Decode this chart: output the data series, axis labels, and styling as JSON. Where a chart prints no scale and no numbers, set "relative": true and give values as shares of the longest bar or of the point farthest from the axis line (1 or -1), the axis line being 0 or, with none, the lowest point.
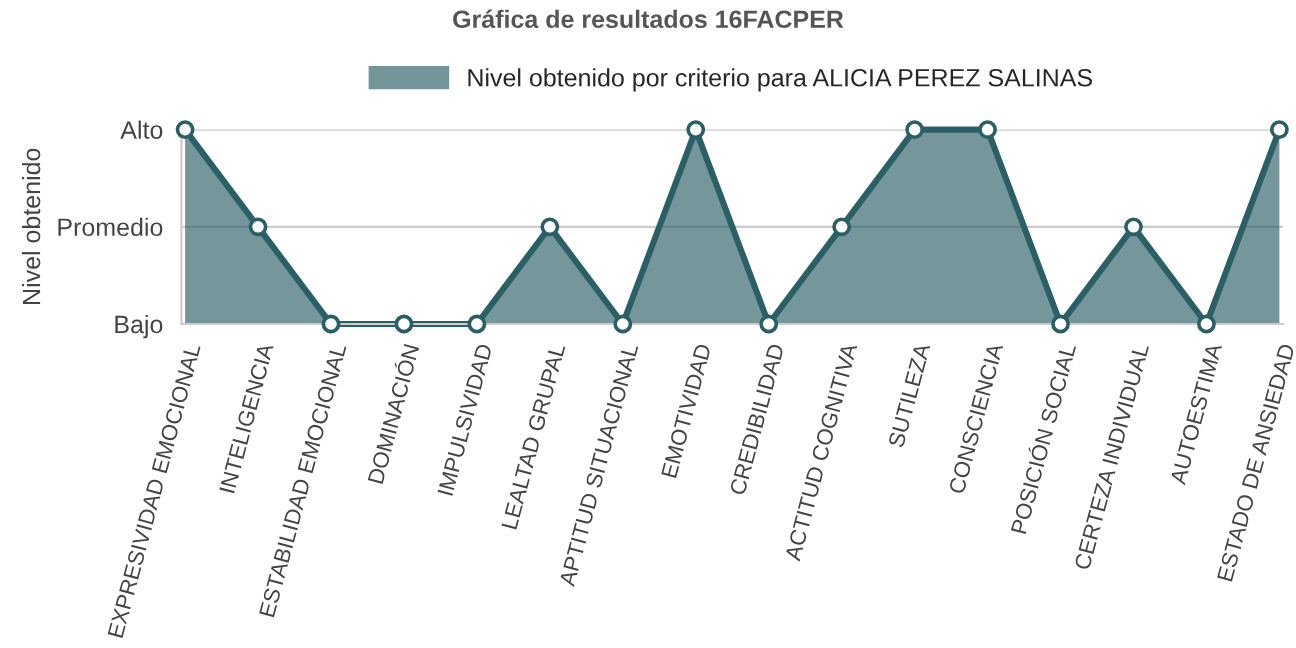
{
  "chart_data": {
    "type": "area",
    "title": "Gráfica de resultados 16FACPER",
    "ylabel": "Nivel obtenido",
    "categories": [
      "EXPRESIVIDAD EMOCIONAL",
      "INTELIGENCIA",
      "ESTABILIDAD EMOCIONAL",
      "DOMINACIÓN",
      "IMPULSIVIDAD",
      "LEALTAD GRUPAL",
      "APTITUD SITUACIONAL",
      "EMOTIVIDAD",
      "CREDIBILIDAD",
      "ACTITUD COGNITIVA",
      "SUTILEZA",
      "CONSCIENCIA",
      "POSICIÓN SOCIAL",
      "CERTEZA INDIVIDUAL",
      "AUTOESTIMA",
      "ESTADO DE ANSIEDAD"
    ],
    "series": [
      {
        "name": "Nivel obtenido por criterio para ALICIA PEREZ SALINAS",
        "color": "#2b5f66",
        "values": [
          1,
          0.5,
          0,
          0,
          0,
          0.5,
          0,
          1,
          0,
          0.5,
          1,
          1,
          0,
          0.5,
          0,
          1
        ]
      }
    ],
    "relative": true,
    "y_categories": [
      "Alto",
      "Promedio",
      "Bajo"
    ],
    "ref_lines": [
      {
        "axis": "y",
        "value": 1,
        "color": "#cccccc"
      },
      {
        "axis": "y",
        "value": 0.5,
        "color": "#cccccc"
      }
    ],
    "legend": "top",
    "marker": "circle",
    "line_style": "solid"
  }
}
